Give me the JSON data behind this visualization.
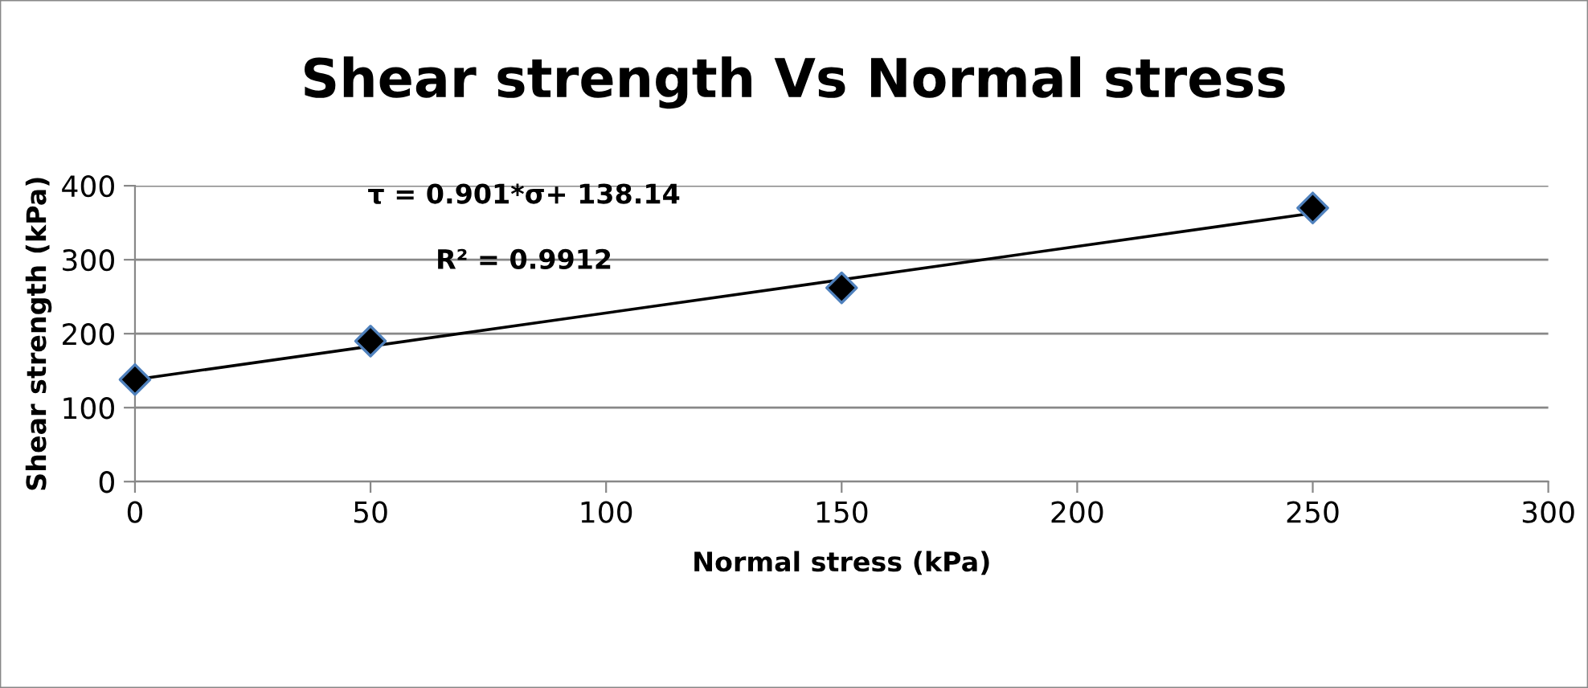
{
  "chart_data": {
    "type": "scatter",
    "title": "Shear strength Vs Normal stress",
    "xlabel": "Normal stress (kPa)",
    "ylabel": "Shear strength (kPa)",
    "annotations": [
      "τ = 0.901*σ+ 138.14",
      "R² = 0.9912"
    ],
    "x": [
      0,
      50,
      150,
      250
    ],
    "series": [
      {
        "color": "#000000",
        "marker": "diamond",
        "values": [
          138,
          190,
          262,
          370
        ]
      },
      {
        "type": "line",
        "color": "#000000",
        "marker": "none",
        "line_style": "solid",
        "x": [
          0,
          250
        ],
        "values": [
          138,
          363
        ]
      }
    ],
    "xlim": [
      0,
      300
    ],
    "xticks": [
      0,
      50,
      100,
      150,
      200,
      250,
      300
    ],
    "ylim": [
      0,
      400
    ],
    "yticks": [
      0,
      100,
      200,
      300,
      400
    ],
    "grid": "y",
    "legend": false
  }
}
